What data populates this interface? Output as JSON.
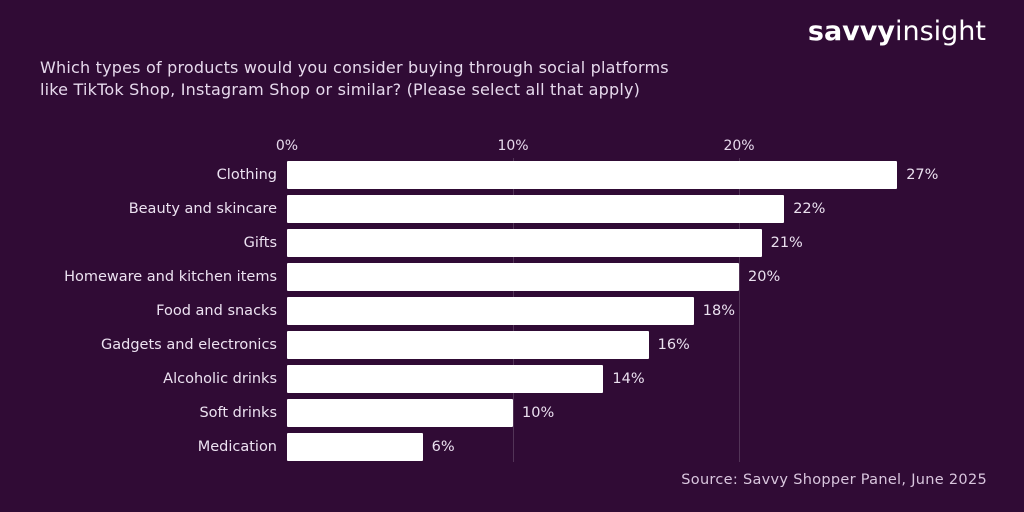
{
  "logo": {
    "bold": "savvy",
    "regular": "insight"
  },
  "header": {
    "title_line1": "Which types of products would you consider buying through social platforms",
    "title_line2": "like TikTok Shop, Instagram Shop or similar? (Please select all that apply)"
  },
  "chart_data": {
    "type": "bar",
    "orientation": "horizontal",
    "title": "Which types of products would you consider buying through social platforms like TikTok Shop, Instagram Shop or similar? (Please select all that apply)",
    "categories": [
      "Clothing",
      "Beauty and skincare",
      "Gifts",
      "Homeware and kitchen items",
      "Food and snacks",
      "Gadgets and electronics",
      "Alcoholic drinks",
      "Soft drinks",
      "Medication"
    ],
    "values": [
      27,
      22,
      21,
      20,
      18,
      16,
      14,
      10,
      6
    ],
    "value_labels": [
      "27%",
      "22%",
      "21%",
      "20%",
      "18%",
      "16%",
      "14%",
      "10%",
      "6%"
    ],
    "unit": "%",
    "xlim": [
      0,
      30
    ],
    "x_ticks": [
      {
        "value": 0,
        "label": "0%"
      },
      {
        "value": 10,
        "label": "10%"
      },
      {
        "value": 20,
        "label": "20%"
      }
    ],
    "gridlines_at": [
      10,
      20
    ],
    "grid": true,
    "legend": false,
    "bar_color": "#ffffff",
    "background_color": "#300b35"
  },
  "source": "Source: Savvy Shopper Panel, June 2025",
  "colors": {
    "background": "#300b35",
    "bar": "#ffffff",
    "title_text": "#e6d9ec",
    "label_text": "#ece2f1",
    "value_text": "#eae0ef",
    "tick_text": "#e6d9ec",
    "source_text": "#d9c6de",
    "gridline": "#ffffff2b"
  }
}
